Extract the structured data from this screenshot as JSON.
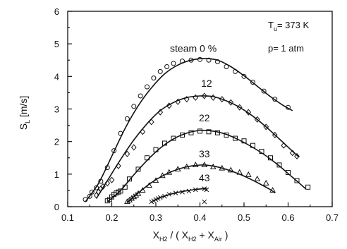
{
  "chart_data": {
    "type": "scatter",
    "x_axis": {
      "label_main": "X",
      "label_sub1": "H2",
      "label_mid": " / ( X",
      "label_sub2": "H2",
      "label_mid2": " + X",
      "label_sub3": "Air",
      "label_end": " )",
      "range": [
        0.1,
        0.7
      ],
      "ticks": [
        "0.1",
        "0.2",
        "0.3",
        "0.4",
        "0.5",
        "0.6",
        "0.7"
      ]
    },
    "y_axis": {
      "label_main": "S",
      "label_sub": "L",
      "label_unit": " [m/s]",
      "range": [
        0,
        6
      ],
      "ticks": [
        "0",
        "1",
        "2",
        "3",
        "4",
        "5",
        "6"
      ]
    },
    "grid": false,
    "annotations": [
      {
        "main": "T",
        "sub": "u",
        "rest": "= 373 K"
      },
      {
        "text": "p= 1 atm"
      }
    ],
    "series": [
      {
        "name": "steam 0 %",
        "marker": "circle",
        "points": [
          [
            0.14,
            0.22
          ],
          [
            0.15,
            0.32
          ],
          [
            0.155,
            0.45
          ],
          [
            0.165,
            0.58
          ],
          [
            0.175,
            0.78
          ],
          [
            0.19,
            1.2
          ],
          [
            0.205,
            1.72
          ],
          [
            0.22,
            2.25
          ],
          [
            0.235,
            2.7
          ],
          [
            0.25,
            3.08
          ],
          [
            0.265,
            3.4
          ],
          [
            0.28,
            3.68
          ],
          [
            0.295,
            3.95
          ],
          [
            0.31,
            4.15
          ],
          [
            0.325,
            4.3
          ],
          [
            0.34,
            4.4
          ],
          [
            0.36,
            4.47
          ],
          [
            0.38,
            4.5
          ],
          [
            0.4,
            4.52
          ],
          [
            0.42,
            4.5
          ],
          [
            0.44,
            4.45
          ],
          [
            0.46,
            4.3
          ],
          [
            0.48,
            4.15
          ],
          [
            0.5,
            4.0
          ],
          [
            0.52,
            3.82
          ],
          [
            0.545,
            3.55
          ],
          [
            0.57,
            3.3
          ],
          [
            0.6,
            3.05
          ]
        ],
        "fit": [
          [
            0.14,
            0.15
          ],
          [
            0.17,
            0.72
          ],
          [
            0.2,
            1.55
          ],
          [
            0.23,
            2.4
          ],
          [
            0.26,
            3.1
          ],
          [
            0.29,
            3.65
          ],
          [
            0.32,
            4.08
          ],
          [
            0.35,
            4.35
          ],
          [
            0.38,
            4.5
          ],
          [
            0.41,
            4.55
          ],
          [
            0.44,
            4.5
          ],
          [
            0.47,
            4.3
          ],
          [
            0.5,
            4.02
          ],
          [
            0.53,
            3.7
          ],
          [
            0.56,
            3.38
          ],
          [
            0.59,
            3.1
          ],
          [
            0.61,
            2.95
          ]
        ]
      },
      {
        "name": "12",
        "marker": "diamond",
        "points": [
          [
            0.165,
            0.35
          ],
          [
            0.17,
            0.45
          ],
          [
            0.175,
            0.55
          ],
          [
            0.18,
            0.62
          ],
          [
            0.19,
            0.72
          ],
          [
            0.2,
            0.82
          ],
          [
            0.215,
            1.25
          ],
          [
            0.235,
            1.62
          ],
          [
            0.25,
            1.82
          ],
          [
            0.27,
            2.3
          ],
          [
            0.29,
            2.6
          ],
          [
            0.31,
            2.9
          ],
          [
            0.33,
            3.1
          ],
          [
            0.35,
            3.22
          ],
          [
            0.37,
            3.3
          ],
          [
            0.39,
            3.35
          ],
          [
            0.41,
            3.4
          ],
          [
            0.43,
            3.35
          ],
          [
            0.45,
            3.3
          ],
          [
            0.47,
            3.2
          ],
          [
            0.49,
            3.05
          ],
          [
            0.51,
            2.9
          ],
          [
            0.53,
            2.68
          ],
          [
            0.55,
            2.45
          ],
          [
            0.57,
            2.2
          ],
          [
            0.59,
            1.88
          ],
          [
            0.61,
            1.65
          ],
          [
            0.62,
            1.55
          ]
        ],
        "fit": [
          [
            0.165,
            0.25
          ],
          [
            0.19,
            0.8
          ],
          [
            0.22,
            1.45
          ],
          [
            0.25,
            2.05
          ],
          [
            0.28,
            2.55
          ],
          [
            0.31,
            2.95
          ],
          [
            0.34,
            3.2
          ],
          [
            0.37,
            3.35
          ],
          [
            0.4,
            3.4
          ],
          [
            0.43,
            3.38
          ],
          [
            0.46,
            3.25
          ],
          [
            0.49,
            3.05
          ],
          [
            0.52,
            2.78
          ],
          [
            0.55,
            2.45
          ],
          [
            0.58,
            2.08
          ],
          [
            0.61,
            1.7
          ],
          [
            0.625,
            1.52
          ]
        ]
      },
      {
        "name": "22",
        "marker": "square",
        "points": [
          [
            0.19,
            0.18
          ],
          [
            0.195,
            0.22
          ],
          [
            0.2,
            0.3
          ],
          [
            0.205,
            0.38
          ],
          [
            0.21,
            0.42
          ],
          [
            0.215,
            0.45
          ],
          [
            0.22,
            0.48
          ],
          [
            0.23,
            0.6
          ],
          [
            0.24,
            0.85
          ],
          [
            0.26,
            1.15
          ],
          [
            0.28,
            1.5
          ],
          [
            0.3,
            1.75
          ],
          [
            0.32,
            1.95
          ],
          [
            0.34,
            2.1
          ],
          [
            0.36,
            2.2
          ],
          [
            0.38,
            2.27
          ],
          [
            0.4,
            2.32
          ],
          [
            0.42,
            2.3
          ],
          [
            0.44,
            2.27
          ],
          [
            0.46,
            2.2
          ],
          [
            0.48,
            2.1
          ],
          [
            0.5,
            2.02
          ],
          [
            0.52,
            1.88
          ],
          [
            0.54,
            1.7
          ],
          [
            0.56,
            1.5
          ],
          [
            0.58,
            1.28
          ],
          [
            0.6,
            1.05
          ],
          [
            0.62,
            0.8
          ],
          [
            0.645,
            0.6
          ]
        ],
        "fit": [
          [
            0.19,
            0.15
          ],
          [
            0.22,
            0.5
          ],
          [
            0.25,
            0.98
          ],
          [
            0.28,
            1.42
          ],
          [
            0.31,
            1.8
          ],
          [
            0.34,
            2.08
          ],
          [
            0.37,
            2.26
          ],
          [
            0.4,
            2.34
          ],
          [
            0.43,
            2.32
          ],
          [
            0.46,
            2.22
          ],
          [
            0.49,
            2.04
          ],
          [
            0.52,
            1.82
          ],
          [
            0.55,
            1.56
          ],
          [
            0.58,
            1.25
          ],
          [
            0.61,
            0.9
          ],
          [
            0.64,
            0.55
          ]
        ]
      },
      {
        "name": "33",
        "marker": "triangle",
        "points": [
          [
            0.235,
            0.15
          ],
          [
            0.24,
            0.2
          ],
          [
            0.245,
            0.25
          ],
          [
            0.25,
            0.3
          ],
          [
            0.255,
            0.35
          ],
          [
            0.26,
            0.4
          ],
          [
            0.27,
            0.5
          ],
          [
            0.285,
            0.65
          ],
          [
            0.3,
            0.8
          ],
          [
            0.315,
            0.95
          ],
          [
            0.33,
            1.05
          ],
          [
            0.35,
            1.15
          ],
          [
            0.37,
            1.22
          ],
          [
            0.39,
            1.28
          ],
          [
            0.41,
            1.28
          ],
          [
            0.43,
            1.22
          ],
          [
            0.45,
            1.18
          ],
          [
            0.47,
            1.12
          ],
          [
            0.49,
            1.05
          ],
          [
            0.51,
            0.98
          ],
          [
            0.53,
            0.85
          ],
          [
            0.55,
            0.72
          ],
          [
            0.565,
            0.5
          ]
        ],
        "fit": [
          [
            0.235,
            0.12
          ],
          [
            0.26,
            0.42
          ],
          [
            0.29,
            0.74
          ],
          [
            0.32,
            0.98
          ],
          [
            0.35,
            1.15
          ],
          [
            0.38,
            1.25
          ],
          [
            0.41,
            1.28
          ],
          [
            0.44,
            1.22
          ],
          [
            0.47,
            1.1
          ],
          [
            0.5,
            0.94
          ],
          [
            0.53,
            0.74
          ],
          [
            0.56,
            0.52
          ],
          [
            0.57,
            0.42
          ]
        ]
      },
      {
        "name": "43",
        "marker": "x",
        "points": [
          [
            0.29,
            0.15
          ],
          [
            0.295,
            0.18
          ],
          [
            0.3,
            0.22
          ],
          [
            0.305,
            0.25
          ],
          [
            0.31,
            0.28
          ],
          [
            0.32,
            0.32
          ],
          [
            0.33,
            0.38
          ],
          [
            0.345,
            0.42
          ],
          [
            0.36,
            0.45
          ],
          [
            0.375,
            0.48
          ],
          [
            0.39,
            0.52
          ],
          [
            0.41,
            0.55
          ],
          [
            0.415,
            0.52
          ],
          [
            0.41,
            0.15
          ]
        ],
        "fit": [
          [
            0.295,
            0.18
          ],
          [
            0.31,
            0.28
          ],
          [
            0.33,
            0.37
          ],
          [
            0.35,
            0.44
          ],
          [
            0.37,
            0.49
          ],
          [
            0.39,
            0.53
          ],
          [
            0.415,
            0.56
          ]
        ]
      }
    ]
  }
}
